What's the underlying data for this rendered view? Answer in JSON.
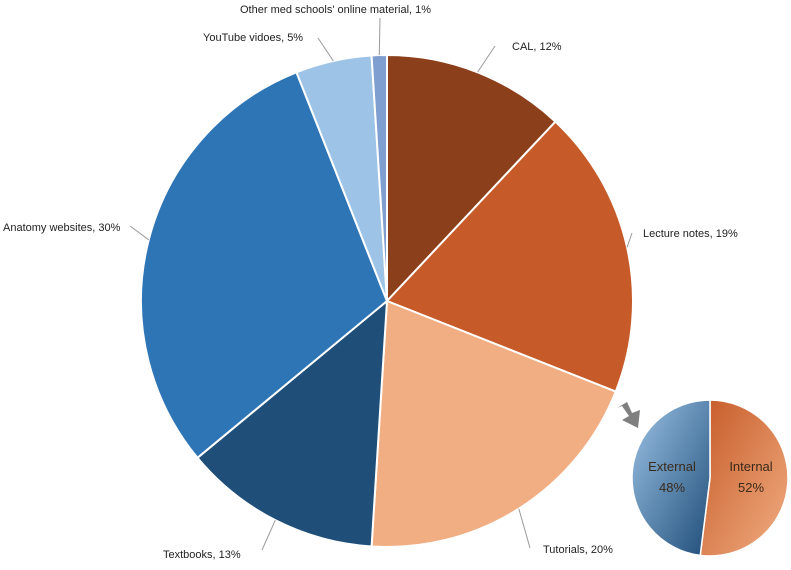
{
  "chart_data": [
    {
      "type": "pie",
      "title": "",
      "slices": [
        {
          "label": "CAL",
          "value": 12,
          "display": "CAL, 12%",
          "color": "#8B3F1A",
          "color2": "#6E2F12"
        },
        {
          "label": "Lecture notes",
          "value": 19,
          "display": "Lecture notes, 19%",
          "color": "#C65A28",
          "color2": "#B04E22"
        },
        {
          "label": "Tutorials",
          "value": 20,
          "display": "Tutorials, 20%",
          "color": "#F1AE82",
          "color2": "#EBA174"
        },
        {
          "label": "Textbooks",
          "value": 13,
          "display": "Textbooks, 13%",
          "color": "#1F4E79",
          "color2": "#1A4168"
        },
        {
          "label": "Anatomy websites",
          "value": 30,
          "display": "Anatomy websites, 30%",
          "color": "#2E75B6",
          "color2": "#2468A8"
        },
        {
          "label": "YouTube vidoes",
          "value": 5,
          "display": "YouTube vidoes, 5%",
          "color": "#9DC3E6",
          "color2": "#8DB6DE"
        },
        {
          "label": "Other med  schools' online material",
          "value": 1,
          "display": "Other med  schools' online material, 1%",
          "color": "#7F9FD0",
          "color2": "#6F8FC4"
        }
      ]
    },
    {
      "type": "pie",
      "title": "",
      "slices": [
        {
          "label": "Internal",
          "value": 52,
          "percent_label": "52%",
          "color": "#C65A28",
          "color2": "#F1AE82"
        },
        {
          "label": "External",
          "value": 48,
          "percent_label": "48%",
          "color": "#9DC3E6",
          "color2": "#1F4E79"
        }
      ]
    }
  ],
  "colors": {
    "slice_border": "#ffffff",
    "leader_line": "#9a9a9a",
    "arrow": "#7f7f7f"
  }
}
